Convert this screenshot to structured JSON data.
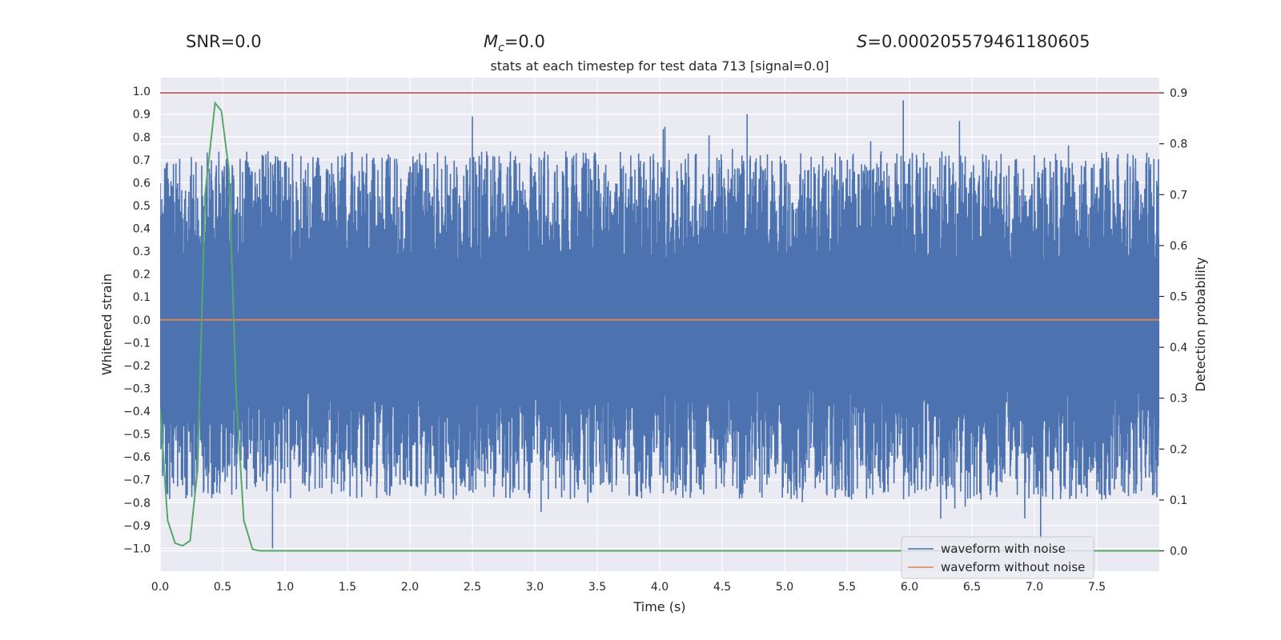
{
  "header": {
    "snr_label": "SNR=",
    "snr_value": "0.0",
    "mc_symbol": "M",
    "mc_sub": "c",
    "mc_value": "=0.0",
    "s_symbol": "S",
    "s_value": "=0.000205579461180605"
  },
  "colors": {
    "background": "#eaeaf2",
    "grid": "#ffffff",
    "noisy": "#4c72b0",
    "clean": "#dd8452",
    "probability": "#55a868",
    "threshold": "#c44e52"
  },
  "chart_data": {
    "type": "line",
    "title": "stats at each timestep for test data 713 [signal=0.0]",
    "xlabel": "Time (s)",
    "ylabel": "Whitened strain",
    "ylabel_right": "Detection probability",
    "xlim": [
      0.0,
      8.0
    ],
    "ylim": [
      -1.1,
      1.06
    ],
    "ylim_right": [
      -0.04,
      0.93
    ],
    "x_ticks": [
      "0.0",
      "0.5",
      "1.0",
      "1.5",
      "2.0",
      "2.5",
      "3.0",
      "3.5",
      "4.0",
      "4.5",
      "5.0",
      "5.5",
      "6.0",
      "6.5",
      "7.0",
      "7.5"
    ],
    "y_ticks": [
      "1.0",
      "0.9",
      "0.8",
      "0.7",
      "0.6",
      "0.5",
      "0.4",
      "0.3",
      "0.2",
      "0.1",
      "0.0",
      "-0.1",
      "-0.2",
      "-0.3",
      "-0.4",
      "-0.5",
      "-0.6",
      "-0.7",
      "-0.8",
      "-0.9",
      "-1.0"
    ],
    "y_ticks_right": [
      "0.9",
      "0.8",
      "0.7",
      "0.6",
      "0.5",
      "0.4",
      "0.3",
      "0.2",
      "0.1",
      "0.0"
    ],
    "grid": true,
    "legend_position": "lower-right",
    "series": [
      {
        "name": "waveform with noise",
        "axis": "left",
        "envelope": {
          "positive_min": 0.25,
          "positive_max": 0.9,
          "negative_min": -0.3,
          "negative_max": -0.95,
          "notable_extremes": [
            {
              "x": 5.95,
              "y": 0.96
            },
            {
              "x": 2.5,
              "y": 0.89
            },
            {
              "x": 4.7,
              "y": 0.9
            },
            {
              "x": 6.4,
              "y": 0.87
            },
            {
              "x": 0.9,
              "y": -1.0
            },
            {
              "x": 7.05,
              "y": -0.96
            },
            {
              "x": 6.25,
              "y": -0.87
            },
            {
              "x": 3.05,
              "y": -0.84
            }
          ]
        }
      },
      {
        "name": "waveform without noise",
        "axis": "left",
        "x": [
          0.0,
          8.0
        ],
        "y": [
          0.0,
          0.0
        ]
      },
      {
        "name": "",
        "axis": "right",
        "x": [
          0.0,
          0.06,
          0.12,
          0.18,
          0.24,
          0.3,
          0.36,
          0.44,
          0.49,
          0.55,
          0.61,
          0.67,
          0.74,
          0.8,
          0.9,
          8.0
        ],
        "y": [
          0.28,
          0.06,
          0.015,
          0.01,
          0.02,
          0.16,
          0.7,
          0.88,
          0.865,
          0.75,
          0.3,
          0.06,
          0.003,
          0.0,
          0.0,
          0.0
        ]
      },
      {
        "name": "",
        "axis": "right",
        "x": [
          0.0,
          8.0
        ],
        "y": [
          0.9,
          0.9
        ]
      }
    ]
  }
}
